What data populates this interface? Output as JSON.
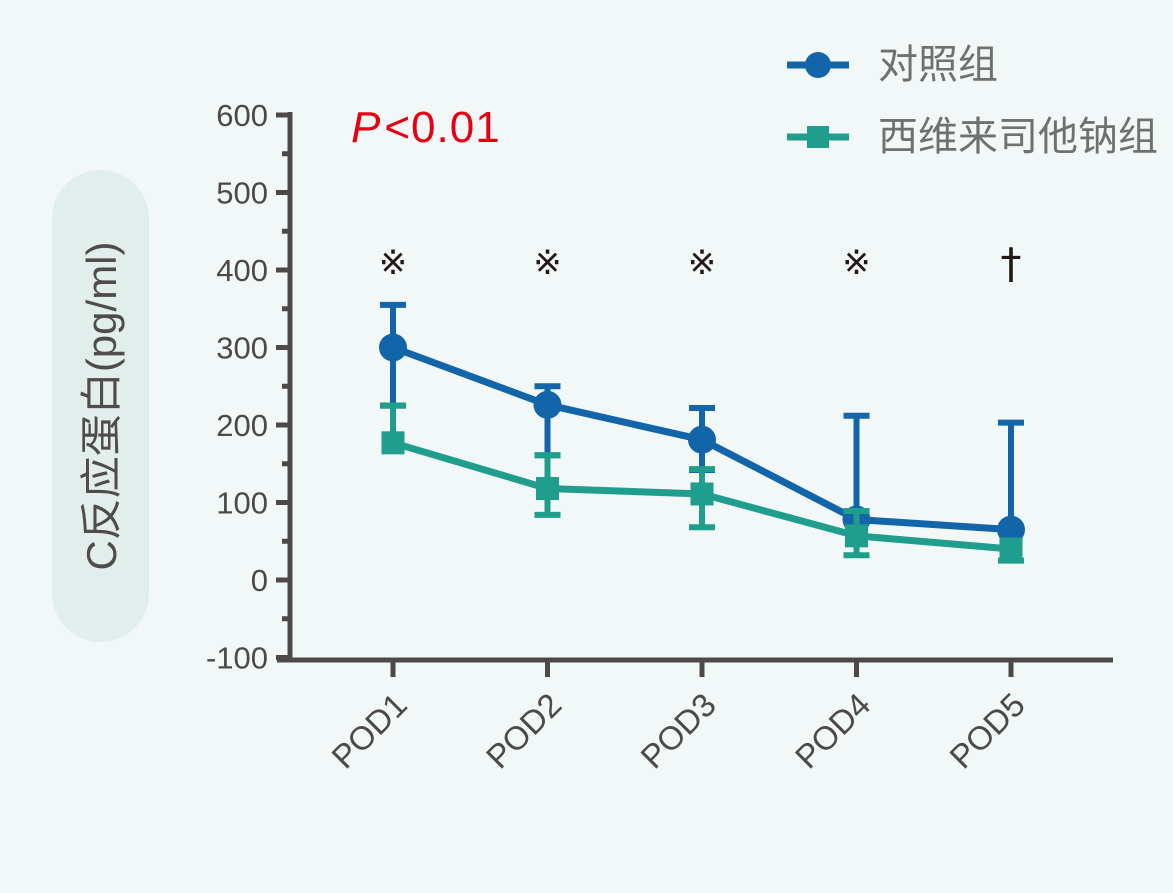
{
  "annotation": {
    "p_italic": "P",
    "p_rest": "<0.01"
  },
  "palette": {
    "background": "#f2f7f7",
    "ylabel_pill": "#e2eeec",
    "axis": "#4c4948",
    "tick_text": "#4c4948",
    "legend_text": "#717071",
    "sig_mark": "#231815",
    "p_value_red": "#e60012",
    "control_blue": "#1165a8",
    "sivelestat_teal": "#1f9d8d"
  },
  "chart_data": {
    "type": "line",
    "title": "",
    "xlabel": "",
    "ylabel": "C反应蛋白(pg/ml)",
    "categories": [
      "POD1",
      "POD2",
      "POD3",
      "POD4",
      "POD5"
    ],
    "ylim": [
      -100,
      600
    ],
    "ytick_step": 100,
    "grid": false,
    "legend_position": "top-right",
    "sig_marks": [
      "※",
      "※",
      "※",
      "※",
      "†"
    ],
    "series": [
      {
        "name": "对照组",
        "marker": "circle",
        "color": "#1165a8",
        "values": [
          300,
          226,
          181,
          78,
          65
        ],
        "err_hi": [
          355,
          250,
          222,
          212,
          203
        ],
        "err_lo": [
          225,
          161,
          142,
          null,
          null
        ]
      },
      {
        "name": "西维来司他钠组",
        "marker": "square",
        "color": "#1f9d8d",
        "values": [
          177,
          118,
          111,
          57,
          40
        ],
        "err_hi": [
          225,
          161,
          143,
          89,
          null
        ],
        "err_lo": [
          null,
          84,
          68,
          32,
          25
        ]
      }
    ]
  }
}
